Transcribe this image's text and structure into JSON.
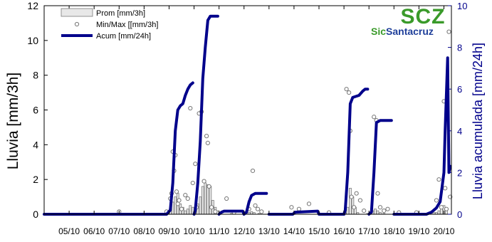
{
  "logo": {
    "mark": "SCZ",
    "name_green": "Sic",
    "name_blue": "Santacruz",
    "color_green": "#3a9a2a",
    "color_blue": "#1f3f9a"
  },
  "chart_data": {
    "type": "bar",
    "title": "",
    "xlabel": "",
    "ylabel": "Lluvia [mm/3h]",
    "y2label": "Lluvia acumulada [mm/24h]",
    "ylim": [
      0,
      12
    ],
    "y2lim": [
      0,
      10
    ],
    "yticks": [
      0,
      2,
      4,
      6,
      8,
      10,
      12
    ],
    "y2ticks": [
      0,
      2,
      4,
      6,
      8,
      10
    ],
    "xlim": [
      4.0,
      20.3
    ],
    "x_ticks": [
      {
        "x": 5,
        "label": "05/10"
      },
      {
        "x": 6,
        "label": "06/10"
      },
      {
        "x": 7,
        "label": "07/10"
      },
      {
        "x": 8,
        "label": "08/10"
      },
      {
        "x": 9,
        "label": "09/10"
      },
      {
        "x": 10,
        "label": "10/10"
      },
      {
        "x": 11,
        "label": "11/10"
      },
      {
        "x": 12,
        "label": "12/10"
      },
      {
        "x": 13,
        "label": "13/10"
      },
      {
        "x": 14,
        "label": "14/10"
      },
      {
        "x": 15,
        "label": "15/10"
      },
      {
        "x": 16,
        "label": "16/10"
      },
      {
        "x": 17,
        "label": "17/10"
      },
      {
        "x": 18,
        "label": "18/10"
      },
      {
        "x": 19,
        "label": "19/10"
      },
      {
        "x": 20,
        "label": "20/10"
      }
    ],
    "legend": {
      "position": "top-left",
      "entries": [
        {
          "label": "Prom [mm/3h]",
          "kind": "bar"
        },
        {
          "label": "Min/Max [[mm/3h]",
          "kind": "point"
        },
        {
          "label": "Acum [mm/24h]",
          "kind": "line"
        }
      ]
    },
    "colors": {
      "bar_fill": "#e8e8e8",
      "bar_stroke": "#7a7a7a",
      "point": "#777777",
      "line": "#00008b",
      "axis_left": "#000000",
      "axis_right": "#00008b"
    },
    "series": [
      {
        "name": "Prom [mm/3h]",
        "axis": "left",
        "kind": "bar",
        "points": [
          [
            8.95,
            0.1
          ],
          [
            9.05,
            0.3
          ],
          [
            9.15,
            0.7
          ],
          [
            9.25,
            1.0
          ],
          [
            9.35,
            1.2
          ],
          [
            9.45,
            0.6
          ],
          [
            9.55,
            0.4
          ],
          [
            9.65,
            0.2
          ],
          [
            9.75,
            0.3
          ],
          [
            9.85,
            0.5
          ],
          [
            9.95,
            0.4
          ],
          [
            10.05,
            0.4
          ],
          [
            10.15,
            0.6
          ],
          [
            10.25,
            1.0
          ],
          [
            10.35,
            1.6
          ],
          [
            10.45,
            1.8
          ],
          [
            10.55,
            1.7
          ],
          [
            10.65,
            1.6
          ],
          [
            10.75,
            0.8
          ],
          [
            10.85,
            0.4
          ],
          [
            10.95,
            0.2
          ],
          [
            11.5,
            0.05
          ],
          [
            12.2,
            0.1
          ],
          [
            12.3,
            0.15
          ],
          [
            12.4,
            0.1
          ],
          [
            12.6,
            0.05
          ],
          [
            16.05,
            0.1
          ],
          [
            16.15,
            0.4
          ],
          [
            16.25,
            1.5
          ],
          [
            16.35,
            1.0
          ],
          [
            16.45,
            0.4
          ],
          [
            16.55,
            0.1
          ],
          [
            16.95,
            0.05
          ],
          [
            17.15,
            0.2
          ],
          [
            17.25,
            0.3
          ],
          [
            17.35,
            0.2
          ],
          [
            17.45,
            0.1
          ],
          [
            17.6,
            0.05
          ],
          [
            19.6,
            0.1
          ],
          [
            19.7,
            0.1
          ],
          [
            19.8,
            0.2
          ],
          [
            19.9,
            0.4
          ],
          [
            20.0,
            0.5
          ],
          [
            20.1,
            0.3
          ]
        ]
      },
      {
        "name": "Min/Max [[mm/3h]",
        "axis": "left",
        "kind": "point",
        "points": [
          [
            7.0,
            0.15
          ],
          [
            8.9,
            0.15
          ],
          [
            9.05,
            0.9
          ],
          [
            9.1,
            1.2
          ],
          [
            9.15,
            3.6
          ],
          [
            9.2,
            2.5
          ],
          [
            9.25,
            3.4
          ],
          [
            9.3,
            1.3
          ],
          [
            9.35,
            0.6
          ],
          [
            9.4,
            0.8
          ],
          [
            9.5,
            0.3
          ],
          [
            9.65,
            1.1
          ],
          [
            9.75,
            0.9
          ],
          [
            9.85,
            6.1
          ],
          [
            9.95,
            1.8
          ],
          [
            10.05,
            2.9
          ],
          [
            10.1,
            0.4
          ],
          [
            10.2,
            5.8
          ],
          [
            10.3,
            5.9
          ],
          [
            10.4,
            1.9
          ],
          [
            10.5,
            4.5
          ],
          [
            10.55,
            4.1
          ],
          [
            10.6,
            1.6
          ],
          [
            10.7,
            0.4
          ],
          [
            10.85,
            0.15
          ],
          [
            11.3,
            0.9
          ],
          [
            11.6,
            0.1
          ],
          [
            12.2,
            0.3
          ],
          [
            12.35,
            2.5
          ],
          [
            12.45,
            0.5
          ],
          [
            12.55,
            0.3
          ],
          [
            12.7,
            0.15
          ],
          [
            13.9,
            0.4
          ],
          [
            14.2,
            0.3
          ],
          [
            14.6,
            0.6
          ],
          [
            15.4,
            0.1
          ],
          [
            16.1,
            7.2
          ],
          [
            16.2,
            7.0
          ],
          [
            16.25,
            4.8
          ],
          [
            16.3,
            1.0
          ],
          [
            16.4,
            0.4
          ],
          [
            16.5,
            1.2
          ],
          [
            16.65,
            0.8
          ],
          [
            16.8,
            0.2
          ],
          [
            17.2,
            5.6
          ],
          [
            17.3,
            5.4
          ],
          [
            17.35,
            1.2
          ],
          [
            17.45,
            0.4
          ],
          [
            17.6,
            0.2
          ],
          [
            17.75,
            0.3
          ],
          [
            18.2,
            0.1
          ],
          [
            18.9,
            0.1
          ],
          [
            19.7,
            0.8
          ],
          [
            19.8,
            2.0
          ],
          [
            19.9,
            0.4
          ],
          [
            20.0,
            6.5
          ],
          [
            20.05,
            1.5
          ],
          [
            20.1,
            0.3
          ],
          [
            20.2,
            10.5
          ],
          [
            20.25,
            1.0
          ]
        ]
      },
      {
        "name": "Acum [mm/24h]",
        "axis": "right",
        "kind": "line",
        "points": [
          [
            4.0,
            0
          ],
          [
            8.9,
            0
          ],
          [
            9.05,
            0.2
          ],
          [
            9.15,
            1.5
          ],
          [
            9.25,
            4.0
          ],
          [
            9.35,
            5.0
          ],
          [
            9.45,
            5.2
          ],
          [
            9.55,
            5.3
          ],
          [
            9.65,
            5.7
          ],
          [
            9.75,
            6.0
          ],
          [
            9.85,
            6.2
          ],
          [
            9.95,
            6.3
          ],
          [
            10.0,
            0
          ],
          [
            10.05,
            0.2
          ],
          [
            10.15,
            1.5
          ],
          [
            10.25,
            3.5
          ],
          [
            10.35,
            6.5
          ],
          [
            10.45,
            8.0
          ],
          [
            10.55,
            9.3
          ],
          [
            10.65,
            9.5
          ],
          [
            10.95,
            9.5
          ],
          [
            11.0,
            0
          ],
          [
            11.1,
            0.1
          ],
          [
            11.2,
            0.15
          ],
          [
            11.95,
            0.15
          ],
          [
            12.0,
            0
          ],
          [
            12.1,
            0.1
          ],
          [
            12.2,
            0.6
          ],
          [
            12.3,
            0.9
          ],
          [
            12.45,
            1.0
          ],
          [
            12.9,
            1.0
          ],
          [
            13.0,
            0
          ],
          [
            13.95,
            0
          ],
          [
            14.05,
            0.1
          ],
          [
            14.95,
            0.15
          ],
          [
            15.0,
            0
          ],
          [
            16.0,
            0
          ],
          [
            16.05,
            0.2
          ],
          [
            16.15,
            2.0
          ],
          [
            16.25,
            5.3
          ],
          [
            16.35,
            5.6
          ],
          [
            16.6,
            5.7
          ],
          [
            16.75,
            5.9
          ],
          [
            16.85,
            6.0
          ],
          [
            16.95,
            6.0
          ],
          [
            17.0,
            0
          ],
          [
            17.1,
            0.1
          ],
          [
            17.2,
            2.0
          ],
          [
            17.3,
            4.4
          ],
          [
            17.45,
            4.5
          ],
          [
            17.9,
            4.5
          ],
          [
            18.0,
            0
          ],
          [
            19.3,
            0
          ],
          [
            19.5,
            0.1
          ],
          [
            19.7,
            0.3
          ],
          [
            19.85,
            0.6
          ],
          [
            20.0,
            2.0
          ],
          [
            20.05,
            4.0
          ],
          [
            20.15,
            7.5
          ],
          [
            20.2,
            2.0
          ],
          [
            20.25,
            2.3
          ]
        ]
      }
    ]
  }
}
